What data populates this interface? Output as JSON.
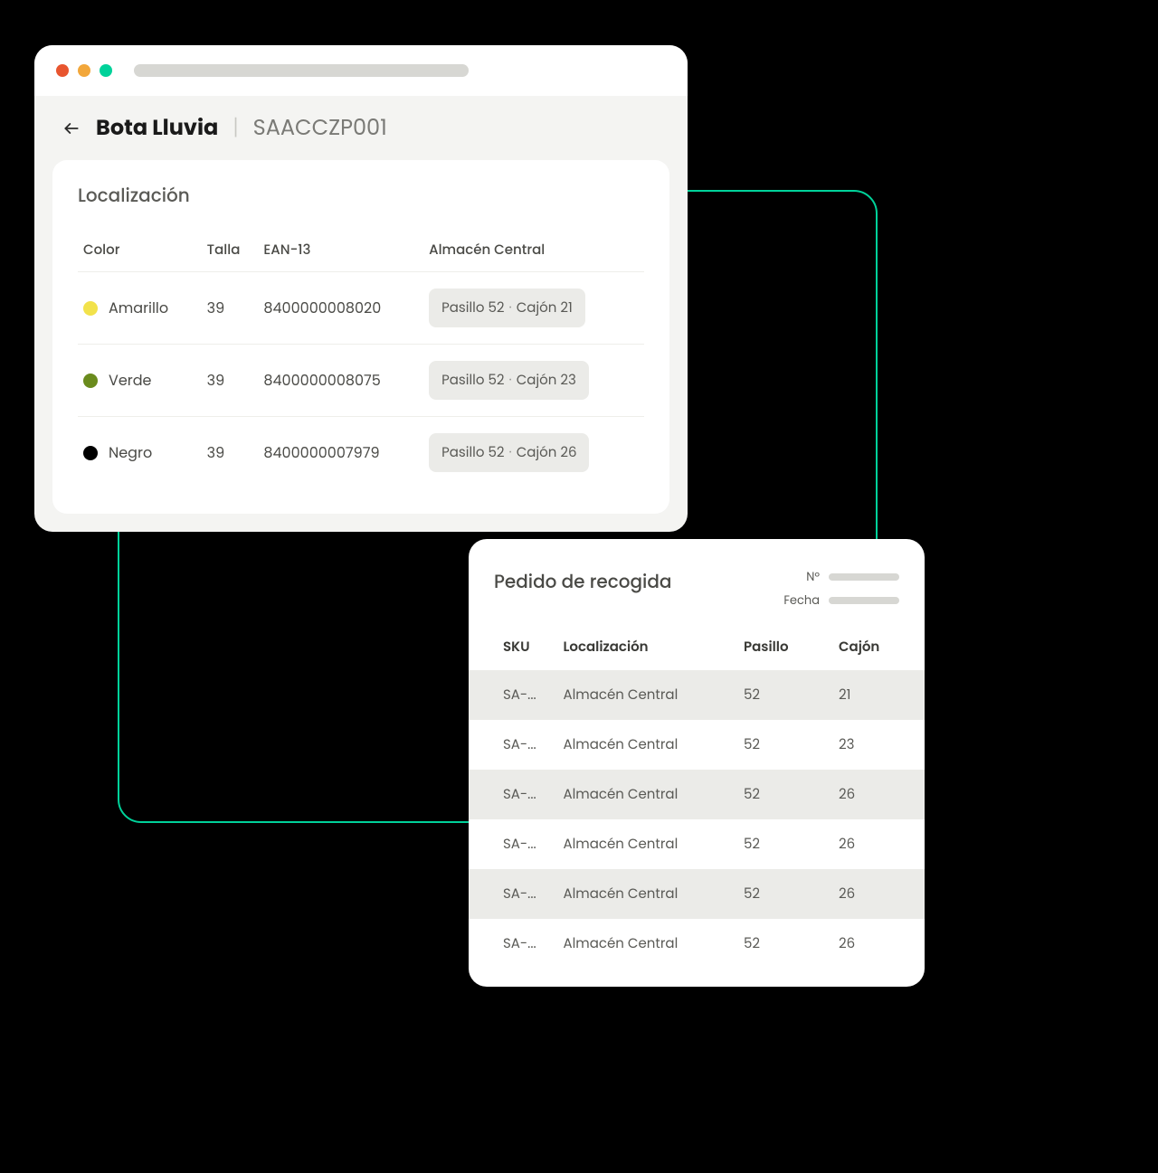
{
  "colors": {
    "background": "#000000",
    "connector": "#00d29a",
    "window_bg": "#f4f4f2",
    "card_bg": "#ffffff",
    "pill_bg": "#ebebe8",
    "traffic_red": "#e8552f",
    "traffic_yellow": "#f2a73b",
    "traffic_green": "#00d29a",
    "url_bar": "#d7d7d3",
    "text_primary": "#1a1a1a",
    "text_secondary": "#5a5a56",
    "text_muted": "#7a7a76"
  },
  "breadcrumb": {
    "title": "Bota Lluvia",
    "code": "SAACCZP001"
  },
  "localizacion": {
    "title": "Localización",
    "headers": {
      "color": "Color",
      "talla": "Talla",
      "ean": "EAN-13",
      "almacen": "Almacén Central"
    },
    "rows": [
      {
        "color_name": "Amarillo",
        "color_hex": "#f2e24b",
        "talla": "39",
        "ean": "8400000008020",
        "loc_a": "Pasillo 52",
        "loc_b": "Cajón 21"
      },
      {
        "color_name": "Verde",
        "color_hex": "#6a8b1d",
        "talla": "39",
        "ean": "8400000008075",
        "loc_a": "Pasillo 52",
        "loc_b": "Cajón 23"
      },
      {
        "color_name": "Negro",
        "color_hex": "#000000",
        "talla": "39",
        "ean": "8400000007979",
        "loc_a": "Pasillo 52",
        "loc_b": "Cajón 26"
      }
    ]
  },
  "pickup": {
    "title": "Pedido de recogida",
    "meta": {
      "numero_label": "Nº",
      "fecha_label": "Fecha"
    },
    "headers": {
      "sku": "SKU",
      "loc": "Localización",
      "pasillo": "Pasillo",
      "cajon": "Cajón"
    },
    "rows": [
      {
        "sku": "SA-...",
        "loc": "Almacén Central",
        "pasillo": "52",
        "cajon": "21"
      },
      {
        "sku": "SA-...",
        "loc": "Almacén Central",
        "pasillo": "52",
        "cajon": "23"
      },
      {
        "sku": "SA-...",
        "loc": "Almacén Central",
        "pasillo": "52",
        "cajon": "26"
      },
      {
        "sku": "SA-...",
        "loc": "Almacén Central",
        "pasillo": "52",
        "cajon": "26"
      },
      {
        "sku": "SA-...",
        "loc": "Almacén Central",
        "pasillo": "52",
        "cajon": "26"
      },
      {
        "sku": "SA-...",
        "loc": "Almacén Central",
        "pasillo": "52",
        "cajon": "26"
      }
    ]
  }
}
